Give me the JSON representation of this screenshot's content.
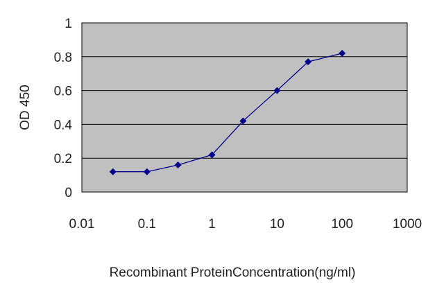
{
  "chart_data": {
    "type": "line",
    "title": "",
    "xlabel": "Recombinant ProteinConcentration(ng/ml)",
    "ylabel": "OD 450",
    "x_scale": "log",
    "xlim": [
      0.01,
      1000
    ],
    "ylim": [
      0,
      1
    ],
    "x_ticks": [
      "0.01",
      "0.1",
      "1",
      "10",
      "100",
      "1000"
    ],
    "y_ticks": [
      "0",
      "0.2",
      "0.4",
      "0.6",
      "0.8",
      "1"
    ],
    "grid": "horizontal",
    "series": [
      {
        "x": [
          0.03,
          0.1,
          0.3,
          1,
          3,
          10,
          30,
          100
        ],
        "y": [
          0.12,
          0.12,
          0.16,
          0.22,
          0.42,
          0.6,
          0.77,
          0.82
        ],
        "color": "#00008b",
        "marker": "diamond"
      }
    ],
    "colors": {
      "plot_background": "#c0c0c0",
      "line": "#00008b",
      "grid": "#000000"
    }
  }
}
